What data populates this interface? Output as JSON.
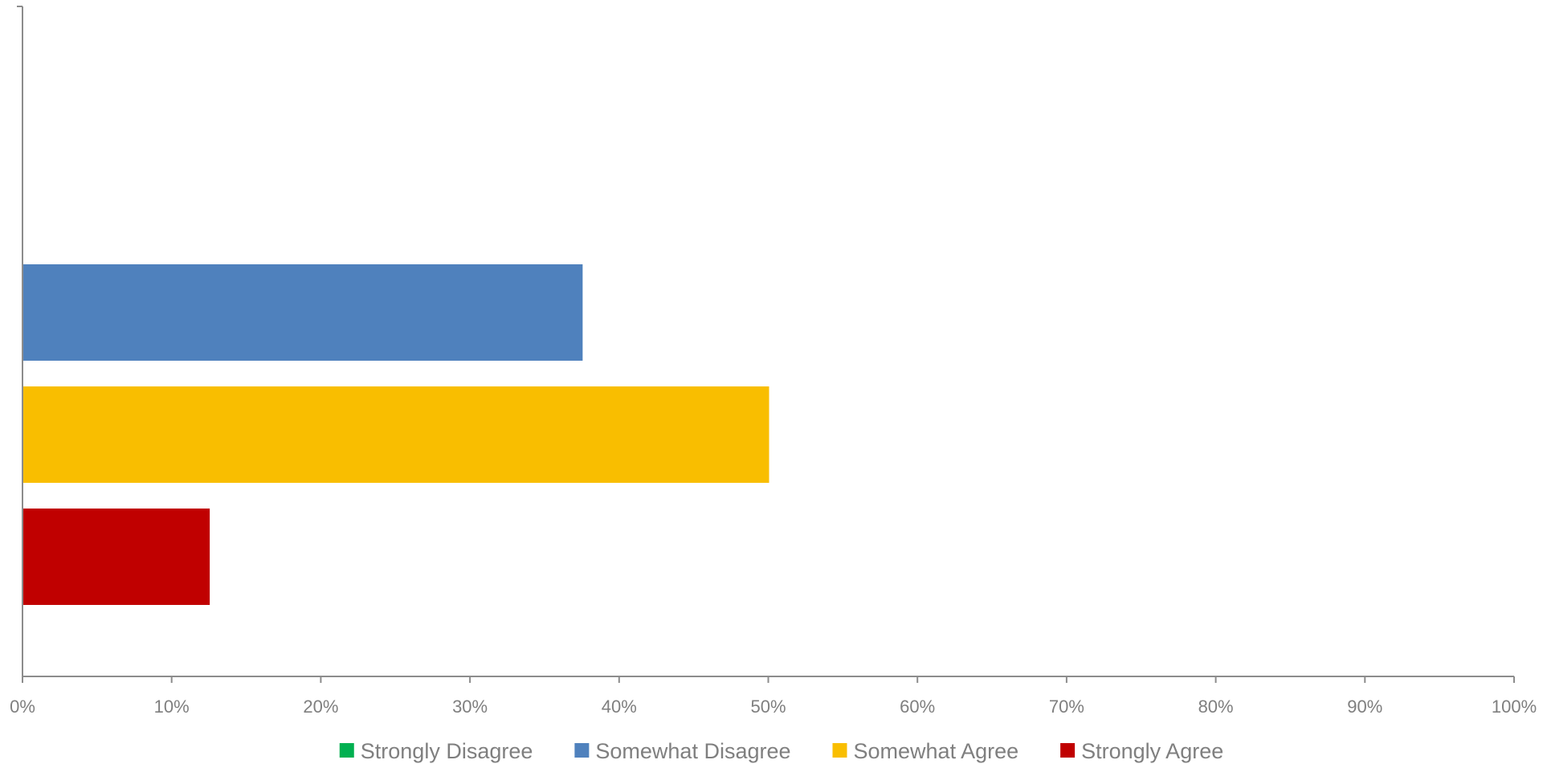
{
  "chart_data": {
    "type": "bar",
    "orientation": "horizontal",
    "categories": [
      ""
    ],
    "series": [
      {
        "name": "Strongly Disagree",
        "color": "#00b050",
        "values": [
          0
        ]
      },
      {
        "name": "Somewhat Disagree",
        "color": "#4f81bd",
        "values": [
          0.375
        ]
      },
      {
        "name": "Somewhat Agree",
        "color": "#f9be00",
        "values": [
          0.5
        ]
      },
      {
        "name": "Strongly Agree",
        "color": "#c00000",
        "values": [
          0.125
        ]
      }
    ],
    "x_ticks": [
      "0%",
      "10%",
      "20%",
      "30%",
      "40%",
      "50%",
      "60%",
      "70%",
      "80%",
      "90%",
      "100%"
    ],
    "xlim": [
      0,
      1
    ],
    "title": "",
    "xlabel": "",
    "ylabel": "",
    "grid": false,
    "legend_position": "bottom"
  }
}
